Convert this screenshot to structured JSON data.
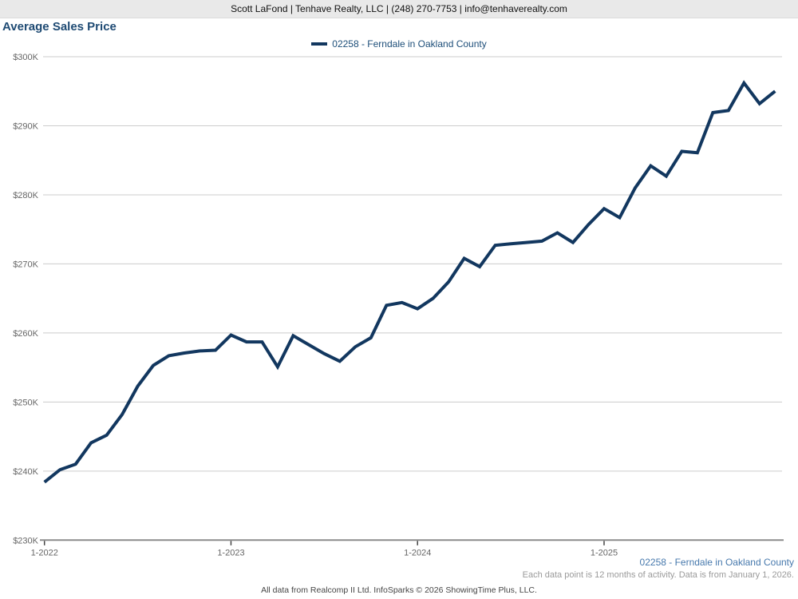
{
  "header": {
    "contact_bar": "Scott LaFond | Tenhave Realty, LLC | (248) 270-7753 | info@tenhaverealty.com"
  },
  "title": "Average Sales Price",
  "legend": {
    "label": "02258 - Ferndale in Oakland County",
    "swatch_color": "#12375f"
  },
  "chart_data": {
    "type": "line",
    "title": "Average Sales Price",
    "xlabel": "",
    "ylabel": "",
    "unit": "USD thousands",
    "ylim": [
      230,
      300
    ],
    "grid": "horizontal",
    "legend_position": "top-center",
    "y_tick_labels": [
      "$230K",
      "$240K",
      "$250K",
      "$260K",
      "$270K",
      "$280K",
      "$290K",
      "$300K"
    ],
    "x_tick_labels": [
      "1-2022",
      "1-2023",
      "1-2024",
      "1-2025"
    ],
    "categories": [
      "1-2022",
      "2-2022",
      "3-2022",
      "4-2022",
      "5-2022",
      "6-2022",
      "7-2022",
      "8-2022",
      "9-2022",
      "10-2022",
      "11-2022",
      "12-2022",
      "1-2023",
      "2-2023",
      "3-2023",
      "4-2023",
      "5-2023",
      "6-2023",
      "7-2023",
      "8-2023",
      "9-2023",
      "10-2023",
      "11-2023",
      "12-2023",
      "1-2024",
      "2-2024",
      "3-2024",
      "4-2024",
      "5-2024",
      "6-2024",
      "7-2024",
      "8-2024",
      "9-2024",
      "10-2024",
      "11-2024",
      "12-2024",
      "1-2025",
      "2-2025",
      "3-2025",
      "4-2025",
      "5-2025",
      "6-2025",
      "7-2025",
      "8-2025",
      "9-2025",
      "10-2025",
      "11-2025",
      "12-2025"
    ],
    "series": [
      {
        "name": "02258 - Ferndale in Oakland County",
        "color": "#12375f",
        "values": [
          238.4,
          240.2,
          241.0,
          244.1,
          245.2,
          248.2,
          252.3,
          255.3,
          256.7,
          257.1,
          257.4,
          257.5,
          259.7,
          258.7,
          258.7,
          255.1,
          259.6,
          258.3,
          257.0,
          255.9,
          258.0,
          259.3,
          264.0,
          264.4,
          263.5,
          265.0,
          267.4,
          270.8,
          269.6,
          272.7,
          272.9,
          273.1,
          273.3,
          274.5,
          273.1,
          275.7,
          278.0,
          276.7,
          281.0,
          284.2,
          282.7,
          286.3,
          286.1,
          291.9,
          292.2,
          296.2,
          293.2,
          295.0
        ]
      }
    ]
  },
  "footer": {
    "series_label": "02258 - Ferndale in Oakland County",
    "note": "Each data point is 12 months of activity. Data is from January 1, 2026.",
    "attribution": "All data from Realcomp II Ltd. InfoSparks © 2026 ShowingTime Plus, LLC."
  },
  "colors": {
    "line": "#12375f",
    "title_text": "#1e4a73",
    "legend_text": "#1d4e79",
    "footer_series_text": "#4779ad",
    "grid": "#cccccc",
    "axis": "#8c8c8c",
    "axis_label_text": "#666666",
    "header_bar_bg": "#e9e9e9"
  }
}
